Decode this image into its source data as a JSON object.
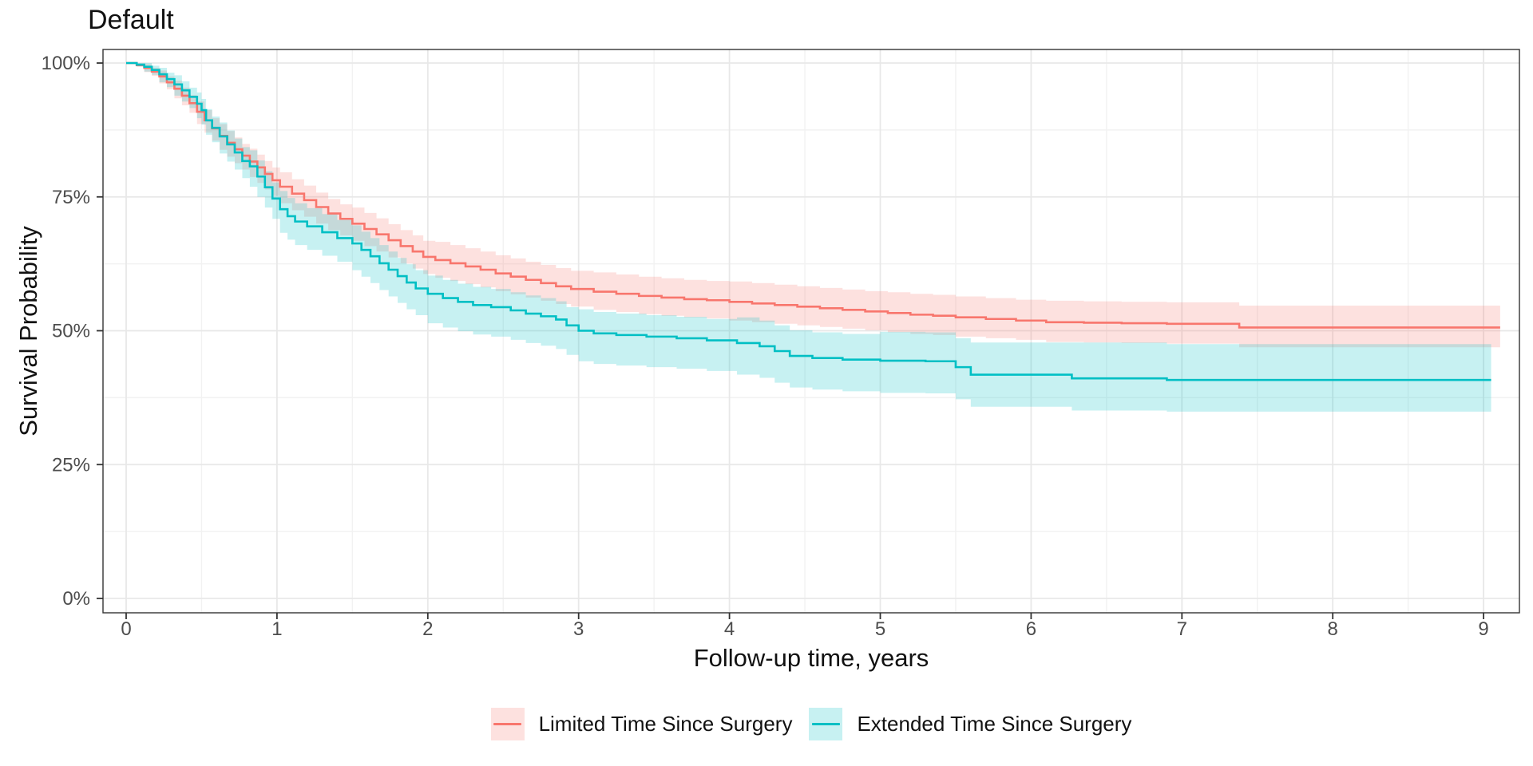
{
  "page": {
    "background": "#FFFFFF"
  },
  "colors": {
    "limited_line": "#F8766D",
    "limited_band": "rgba(248,118,109,0.22)",
    "extended_line": "#00BFC4",
    "extended_band": "rgba(0,191,196,0.22)",
    "grid_major": "#E8E8E8",
    "grid_minor": "#F2F2F2",
    "panel_border": "#333333",
    "tick_mark": "#333333",
    "tick_label": "#4D4D4D",
    "text": "#111111"
  },
  "chart_data": {
    "type": "line",
    "variant": "kaplan-meier step curves with confidence bands",
    "title": "Default",
    "xlabel": "Follow-up time, years",
    "ylabel": "Survival Probability",
    "x_ticks": [
      0,
      1,
      2,
      3,
      4,
      5,
      6,
      7,
      8,
      9
    ],
    "x_tick_labels": [
      "0",
      "1",
      "2",
      "3",
      "4",
      "5",
      "6",
      "7",
      "8",
      "9"
    ],
    "x_minor_ticks": [
      0.5,
      1.5,
      2.5,
      3.5,
      4.5,
      5.5,
      6.5,
      7.5,
      8.5
    ],
    "y_ticks": [
      0,
      25,
      50,
      75,
      100
    ],
    "y_tick_labels": [
      "0%",
      "25%",
      "50%",
      "75%",
      "100%"
    ],
    "y_minor_ticks": [
      12.5,
      37.5,
      62.5,
      87.5
    ],
    "xlim": [
      -0.153,
      9.236
    ],
    "ylim": [
      -2.68,
      102.53
    ],
    "grid": true,
    "legend_position": "bottom",
    "series": [
      {
        "name": "Limited Time Since Surgery",
        "color_key": "limited_line",
        "fill_key": "limited_band",
        "points": [
          [
            0,
            100,
            100,
            100
          ],
          [
            0.07,
            99.6,
            99.3,
            99.9
          ],
          [
            0.12,
            99.1,
            98.3,
            99.8
          ],
          [
            0.17,
            98.4,
            97.6,
            99.1
          ],
          [
            0.22,
            97.5,
            96.2,
            98.6
          ],
          [
            0.27,
            96.4,
            95.1,
            97.5
          ],
          [
            0.32,
            95.2,
            93.4,
            96.7
          ],
          [
            0.37,
            93.9,
            92.1,
            95.4
          ],
          [
            0.42,
            92.5,
            90.7,
            94.0
          ],
          [
            0.47,
            90.9,
            88.6,
            92.8
          ],
          [
            0.52,
            89.3,
            87.0,
            91.2
          ],
          [
            0.57,
            87.8,
            85.5,
            89.7
          ],
          [
            0.62,
            86.4,
            83.8,
            88.6
          ],
          [
            0.67,
            85.1,
            82.5,
            87.3
          ],
          [
            0.72,
            83.9,
            81.3,
            86.1
          ],
          [
            0.77,
            82.7,
            80.1,
            84.9
          ],
          [
            0.82,
            81.6,
            78.7,
            84.0
          ],
          [
            0.87,
            80.5,
            77.6,
            82.9
          ],
          [
            0.92,
            79.3,
            76.4,
            81.7
          ],
          [
            0.97,
            78.1,
            75.2,
            80.5
          ],
          [
            1.02,
            76.9,
            73.8,
            79.6
          ],
          [
            1.1,
            75.6,
            72.5,
            78.3
          ],
          [
            1.18,
            74.4,
            71.3,
            77.1
          ],
          [
            1.26,
            73.1,
            70.0,
            75.8
          ],
          [
            1.34,
            71.9,
            68.8,
            74.6
          ],
          [
            1.42,
            70.9,
            67.8,
            73.6
          ],
          [
            1.5,
            70.0,
            66.8,
            73.0
          ],
          [
            1.58,
            69.0,
            65.8,
            72.0
          ],
          [
            1.66,
            68.0,
            64.8,
            71.0
          ],
          [
            1.74,
            66.9,
            63.7,
            69.9
          ],
          [
            1.82,
            65.8,
            62.6,
            68.8
          ],
          [
            1.9,
            64.8,
            61.6,
            67.8
          ],
          [
            1.97,
            63.8,
            60.6,
            66.8
          ],
          [
            2.05,
            63.2,
            59.9,
            66.6
          ],
          [
            2.15,
            62.6,
            59.3,
            66.0
          ],
          [
            2.25,
            62.0,
            58.7,
            65.4
          ],
          [
            2.35,
            61.4,
            58.1,
            64.8
          ],
          [
            2.45,
            60.7,
            57.4,
            64.1
          ],
          [
            2.55,
            60.1,
            56.8,
            63.5
          ],
          [
            2.65,
            59.5,
            56.2,
            62.9
          ],
          [
            2.75,
            58.9,
            55.6,
            62.3
          ],
          [
            2.85,
            58.3,
            55.0,
            61.7
          ],
          [
            2.95,
            57.8,
            54.5,
            61.2
          ],
          [
            3.1,
            57.3,
            53.9,
            60.9
          ],
          [
            3.25,
            56.9,
            53.5,
            60.5
          ],
          [
            3.4,
            56.5,
            53.1,
            60.1
          ],
          [
            3.55,
            56.2,
            52.8,
            59.8
          ],
          [
            3.7,
            55.9,
            52.5,
            59.5
          ],
          [
            3.85,
            55.7,
            52.3,
            59.3
          ],
          [
            4.0,
            55.4,
            51.9,
            59.2
          ],
          [
            4.15,
            55.1,
            51.6,
            58.9
          ],
          [
            4.3,
            54.8,
            51.3,
            58.6
          ],
          [
            4.45,
            54.5,
            51.0,
            58.3
          ],
          [
            4.6,
            54.2,
            50.7,
            58.0
          ],
          [
            4.75,
            53.9,
            50.4,
            57.7
          ],
          [
            4.9,
            53.6,
            50.1,
            57.4
          ],
          [
            5.05,
            53.3,
            49.7,
            57.2
          ],
          [
            5.2,
            53.0,
            49.4,
            56.9
          ],
          [
            5.35,
            52.8,
            49.2,
            56.7
          ],
          [
            5.5,
            52.5,
            48.9,
            56.4
          ],
          [
            5.7,
            52.2,
            48.6,
            56.1
          ],
          [
            5.9,
            51.9,
            48.3,
            55.8
          ],
          [
            6.1,
            51.6,
            47.9,
            55.6
          ],
          [
            6.35,
            51.5,
            47.8,
            55.5
          ],
          [
            6.6,
            51.4,
            47.7,
            55.4
          ],
          [
            6.9,
            51.3,
            47.6,
            55.3
          ],
          [
            7.38,
            50.6,
            46.9,
            54.7
          ],
          [
            9.11,
            50.6,
            46.9,
            54.7
          ]
        ]
      },
      {
        "name": "Extended Time Since Surgery",
        "color_key": "extended_line",
        "fill_key": "extended_band",
        "points": [
          [
            0,
            100,
            100,
            100
          ],
          [
            0.07,
            99.7,
            99.4,
            100
          ],
          [
            0.12,
            99.3,
            98.4,
            100
          ],
          [
            0.17,
            98.7,
            97.8,
            99.5
          ],
          [
            0.22,
            97.9,
            96.4,
            99.1
          ],
          [
            0.27,
            97.0,
            95.5,
            98.2
          ],
          [
            0.32,
            96.0,
            93.9,
            97.7
          ],
          [
            0.37,
            94.9,
            92.8,
            96.6
          ],
          [
            0.42,
            93.7,
            91.6,
            95.4
          ],
          [
            0.47,
            92.4,
            89.7,
            94.5
          ],
          [
            0.5,
            91.2,
            88.5,
            93.3
          ],
          [
            0.53,
            89.3,
            86.6,
            91.4
          ],
          [
            0.57,
            87.9,
            85.2,
            90.0
          ],
          [
            0.62,
            86.3,
            83.1,
            88.9
          ],
          [
            0.67,
            84.8,
            81.6,
            87.4
          ],
          [
            0.72,
            83.3,
            80.1,
            85.9
          ],
          [
            0.77,
            81.7,
            78.5,
            84.3
          ],
          [
            0.82,
            80.7,
            76.9,
            83.7
          ],
          [
            0.87,
            78.8,
            75.0,
            81.8
          ],
          [
            0.92,
            76.8,
            73.0,
            79.8
          ],
          [
            0.97,
            74.7,
            70.9,
            77.7
          ],
          [
            1.02,
            72.7,
            68.3,
            76.1
          ],
          [
            1.07,
            71.4,
            67.0,
            74.8
          ],
          [
            1.12,
            70.4,
            66.0,
            73.8
          ],
          [
            1.2,
            69.5,
            65.1,
            72.9
          ],
          [
            1.3,
            68.4,
            64.0,
            71.8
          ],
          [
            1.4,
            67.3,
            62.9,
            70.7
          ],
          [
            1.5,
            66.3,
            61.3,
            69.7
          ],
          [
            1.56,
            65.1,
            60.1,
            68.5
          ],
          [
            1.62,
            63.9,
            58.9,
            67.3
          ],
          [
            1.68,
            62.6,
            57.6,
            66.0
          ],
          [
            1.74,
            61.4,
            56.4,
            64.8
          ],
          [
            1.8,
            60.2,
            55.2,
            63.6
          ],
          [
            1.86,
            59.0,
            54.0,
            62.4
          ],
          [
            1.92,
            57.9,
            52.9,
            61.3
          ],
          [
            2.0,
            56.9,
            51.4,
            60.3
          ],
          [
            2.1,
            56.1,
            50.6,
            59.5
          ],
          [
            2.2,
            55.4,
            49.9,
            58.8
          ],
          [
            2.3,
            54.8,
            49.3,
            58.2
          ],
          [
            2.42,
            54.4,
            48.9,
            57.8
          ],
          [
            2.55,
            53.8,
            48.3,
            57.2
          ],
          [
            2.65,
            53.2,
            47.7,
            56.6
          ],
          [
            2.75,
            52.7,
            47.2,
            56.1
          ],
          [
            2.85,
            52.1,
            46.6,
            55.5
          ],
          [
            2.92,
            51.0,
            45.5,
            54.4
          ],
          [
            3.0,
            50.0,
            44.3,
            54.0
          ],
          [
            3.1,
            49.5,
            43.8,
            53.5
          ],
          [
            3.25,
            49.2,
            43.5,
            53.2
          ],
          [
            3.45,
            48.9,
            43.2,
            52.9
          ],
          [
            3.65,
            48.6,
            42.9,
            52.6
          ],
          [
            3.85,
            48.2,
            42.5,
            52.2
          ],
          [
            4.05,
            47.7,
            41.8,
            52.5
          ],
          [
            4.2,
            47.1,
            41.2,
            51.9
          ],
          [
            4.3,
            46.2,
            40.3,
            51.0
          ],
          [
            4.4,
            45.3,
            39.4,
            50.1
          ],
          [
            4.55,
            44.9,
            39.0,
            49.7
          ],
          [
            4.75,
            44.6,
            38.7,
            49.4
          ],
          [
            5.0,
            44.4,
            38.4,
            49.8
          ],
          [
            5.3,
            44.3,
            38.3,
            49.7
          ],
          [
            5.5,
            43.2,
            37.2,
            48.6
          ],
          [
            5.6,
            41.8,
            35.8,
            47.8
          ],
          [
            6.27,
            41.1,
            35.1,
            47.8
          ],
          [
            6.9,
            40.8,
            34.9,
            47.5
          ],
          [
            9.05,
            40.8,
            34.9,
            47.5
          ]
        ]
      }
    ]
  }
}
